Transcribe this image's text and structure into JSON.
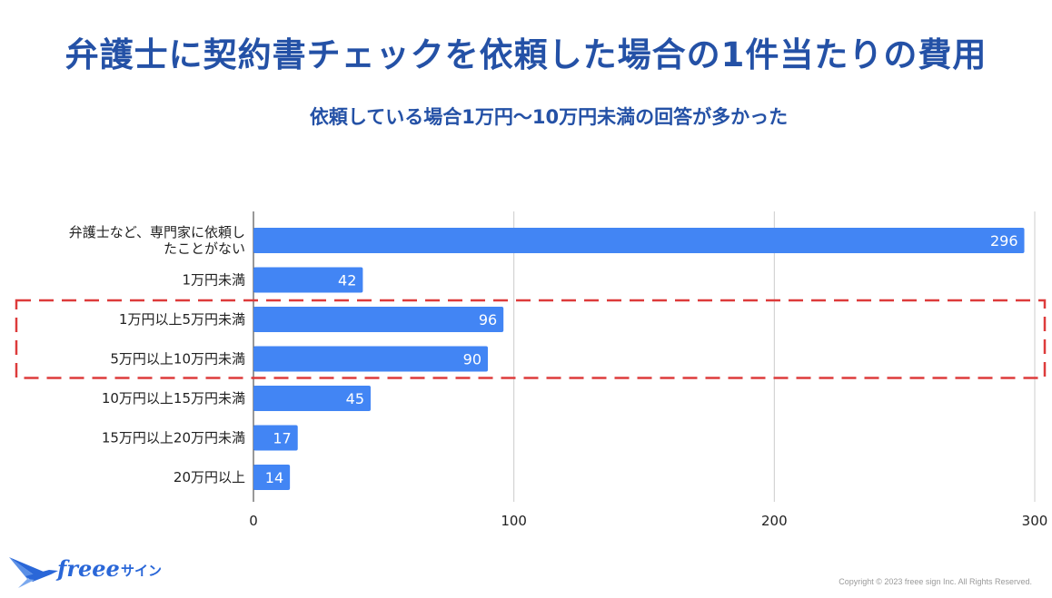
{
  "title": "弁護士に契約書チェックを依頼した場合の1件当たりの費用",
  "subtitle": "依頼している場合1万円〜10万円未満の回答が多かった",
  "chart_data": {
    "type": "bar",
    "orientation": "horizontal",
    "categories": [
      "弁護士など、専門家に依頼したことがない",
      "1万円未満",
      "1万円以上5万円未満",
      "5万円以上10万円未満",
      "10万円以上15万円未満",
      "15万円以上20万円未満",
      "20万円以上"
    ],
    "category_lines": [
      [
        "弁護士など、専門家に依頼し",
        "たことがない"
      ],
      [
        "1万円未満"
      ],
      [
        "1万円以上5万円未満"
      ],
      [
        "5万円以上10万円未満"
      ],
      [
        "10万円以上15万円未満"
      ],
      [
        "15万円以上20万円未満"
      ],
      [
        "20万円以上"
      ]
    ],
    "values": [
      296,
      42,
      96,
      90,
      45,
      17,
      14
    ],
    "value_labels": [
      "296",
      "42",
      "96",
      "90",
      "45",
      "17",
      "14"
    ],
    "xlim": [
      0,
      300
    ],
    "x_ticks": [
      0,
      100,
      200,
      300
    ],
    "x_tick_labels": [
      "0",
      "100",
      "200",
      "300"
    ],
    "grid": true,
    "highlighted_categories": [
      "1万円以上5万円未満",
      "5万円以上10万円未満"
    ],
    "bar_color": "#4285f4",
    "highlight_color": "#dd3b3b",
    "grid_color": "#cccccc",
    "xlabel": "",
    "ylabel": ""
  },
  "logo": {
    "brand": "freee",
    "product": "サイン",
    "color": "#2a67d8"
  },
  "copyright": "Copyright © 2023 freee sign Inc. All Rights Reserved."
}
